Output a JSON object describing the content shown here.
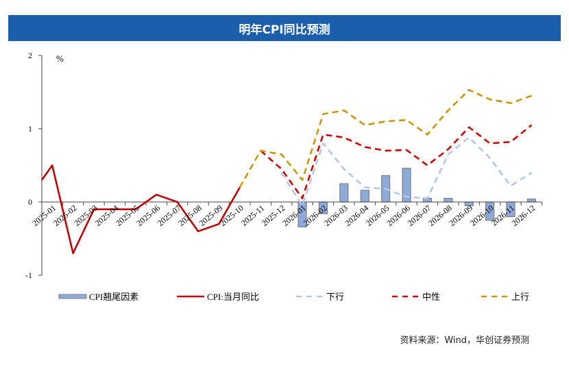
{
  "title": "明年CPI同比预测",
  "source": "资料来源：Wind，华创证券预测",
  "chart_data": {
    "type": "line",
    "title": "明年CPI同比预测",
    "ylabel": "%",
    "ylim": [
      -1,
      2
    ],
    "yticks": [
      "2",
      "1",
      "0",
      "-1"
    ],
    "yticks_values": [
      2,
      1,
      0,
      -1
    ],
    "categories": [
      "2025-01",
      "2025-02",
      "2025-03",
      "2025-04",
      "2025-05",
      "2025-06",
      "2025-07",
      "2025-08",
      "2025-09",
      "2025-10",
      "2025-11",
      "2025-12",
      "2026-01",
      "2026-02",
      "2026-03",
      "2026-04",
      "2026-05",
      "2026-06",
      "2026-07",
      "2026-08",
      "2026-09",
      "2026-10",
      "2026-11",
      "2026-12"
    ],
    "legend_position": "bottom",
    "series": [
      {
        "name": "CPI翘尾因素",
        "kind": "bar",
        "color": "#8eaadb",
        "values": [
          null,
          null,
          null,
          null,
          null,
          null,
          null,
          null,
          null,
          null,
          null,
          null,
          -0.34,
          -0.16,
          0.25,
          0.16,
          0.36,
          0.46,
          0.05,
          0.05,
          -0.05,
          -0.25,
          -0.2,
          0.04
        ]
      },
      {
        "name": "CPI:当月同比",
        "kind": "solid",
        "color": "#c00000",
        "lead_value": 0.3,
        "values": [
          0.5,
          -0.7,
          -0.1,
          -0.1,
          -0.1,
          0.1,
          0.0,
          -0.4,
          -0.3,
          0.2,
          null,
          null,
          null,
          null,
          null,
          null,
          null,
          null,
          null,
          null,
          null,
          null,
          null,
          null
        ]
      },
      {
        "name": "下行",
        "kind": "dash",
        "color": "#b4c7e7",
        "values": [
          null,
          null,
          null,
          null,
          null,
          null,
          null,
          null,
          null,
          null,
          null,
          0.4,
          -0.05,
          0.8,
          0.45,
          0.2,
          0.18,
          0.07,
          0.05,
          0.65,
          0.88,
          0.6,
          0.22,
          0.4
        ]
      },
      {
        "name": "中性",
        "kind": "dash",
        "color": "#d00000",
        "values": [
          null,
          null,
          null,
          null,
          null,
          null,
          null,
          null,
          null,
          null,
          0.7,
          0.45,
          0.05,
          0.92,
          0.88,
          0.75,
          0.7,
          0.71,
          0.5,
          0.72,
          1.02,
          0.8,
          0.82,
          1.05
        ]
      },
      {
        "name": "上行",
        "kind": "dash",
        "color": "#c89800",
        "values": [
          null,
          null,
          null,
          null,
          null,
          null,
          null,
          null,
          null,
          0.2,
          0.7,
          0.65,
          0.3,
          1.2,
          1.25,
          1.05,
          1.1,
          1.12,
          0.92,
          1.25,
          1.53,
          1.4,
          1.35,
          1.45
        ]
      }
    ]
  }
}
